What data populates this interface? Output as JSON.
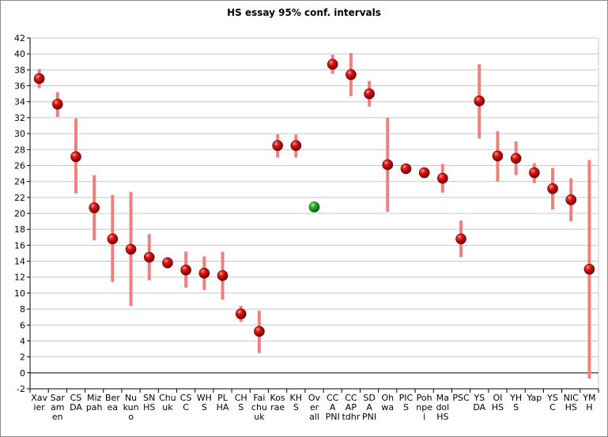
{
  "chart_data": {
    "type": "scatter",
    "title": "HS essay 95% conf. intervals",
    "xlabel": "",
    "ylabel": "",
    "ylim": [
      -2,
      42
    ],
    "y_ticks": [
      -2,
      0,
      2,
      4,
      6,
      8,
      10,
      12,
      14,
      16,
      18,
      20,
      22,
      24,
      26,
      28,
      30,
      32,
      34,
      36,
      38,
      40,
      42
    ],
    "grid": true,
    "legend": "none",
    "colors": {
      "point": "#cc0000",
      "overall_point": "#22aa22",
      "error_bar": "#f08080",
      "grid": "#c8c8c8"
    },
    "categories": [
      [
        "Xav",
        "ier"
      ],
      [
        "Sar",
        "am",
        "en"
      ],
      [
        "CS",
        "DA"
      ],
      [
        "Miz",
        "pah"
      ],
      [
        "Ber",
        "ea"
      ],
      [
        "Nu",
        "kun",
        "o"
      ],
      [
        "SN",
        "HS"
      ],
      [
        "Chu",
        "uk"
      ],
      [
        "CS",
        "C"
      ],
      [
        "WH",
        "S"
      ],
      [
        "PL",
        "HA"
      ],
      [
        "CH",
        "S"
      ],
      [
        "Fai",
        "chu",
        "uk"
      ],
      [
        "Kos",
        "rae"
      ],
      [
        "KH",
        "S"
      ],
      [
        "Ov",
        "er",
        "all"
      ],
      [
        "CC",
        "A",
        "PNI"
      ],
      [
        "CC",
        "AP",
        "tdhr"
      ],
      [
        "SD",
        "A",
        "PNI"
      ],
      [
        "Oh",
        "wa"
      ],
      [
        "PIC",
        "S"
      ],
      [
        "Poh",
        "npe",
        "i"
      ],
      [
        "Ma",
        "dol",
        "HS"
      ],
      [
        "PSC"
      ],
      [
        "YS",
        "DA"
      ],
      [
        "OI",
        "HS"
      ],
      [
        "YH",
        "S"
      ],
      [
        "Yap"
      ],
      [
        "YS",
        "C"
      ],
      [
        "NIC",
        "HS"
      ],
      [
        "YM",
        "H"
      ]
    ],
    "values": [
      36.9,
      33.7,
      27.1,
      20.7,
      16.8,
      15.5,
      14.5,
      13.8,
      12.9,
      12.5,
      12.2,
      7.4,
      5.2,
      28.5,
      28.5,
      20.8,
      38.7,
      37.4,
      35.0,
      26.1,
      25.6,
      25.1,
      24.4,
      16.8,
      34.1,
      27.2,
      26.9,
      25.1,
      23.1,
      21.7,
      13.0
    ],
    "lower": [
      35.7,
      32.1,
      22.5,
      16.6,
      11.4,
      8.4,
      11.6,
      13.1,
      10.7,
      10.4,
      9.2,
      6.4,
      2.5,
      27.0,
      27.0,
      20.8,
      37.5,
      34.7,
      33.4,
      20.2,
      25.0,
      24.5,
      22.6,
      14.5,
      29.4,
      24.0,
      24.8,
      23.8,
      20.5,
      19.0,
      -0.7
    ],
    "upper": [
      38.1,
      35.2,
      31.9,
      24.8,
      22.3,
      22.7,
      17.4,
      14.5,
      15.2,
      14.6,
      15.2,
      8.4,
      7.8,
      29.9,
      29.9,
      20.8,
      39.9,
      40.1,
      36.6,
      32.0,
      26.2,
      25.7,
      26.2,
      19.1,
      38.7,
      30.3,
      29.0,
      26.3,
      25.7,
      24.4,
      26.7
    ],
    "highlight_index": 15
  }
}
